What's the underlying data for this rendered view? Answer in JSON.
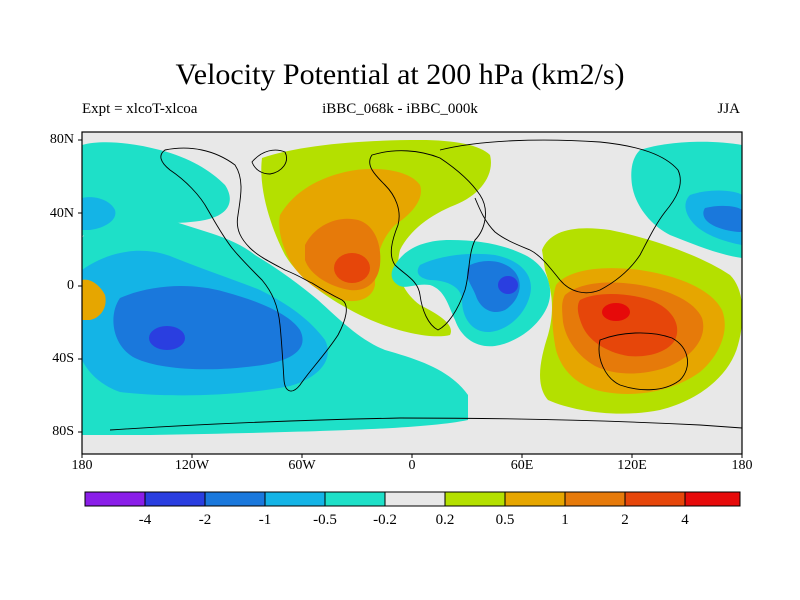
{
  "header": {
    "title": "Velocity Potential at 200 hPa (km2/s)",
    "left": "Expt = xlcoT-xlcoa",
    "center": "iBBC_068k - iBBC_000k",
    "right": "JJA"
  },
  "axes": {
    "lat_ticks": [
      "80N",
      "40N",
      "0",
      "40S",
      "80S"
    ],
    "lon_ticks": [
      "180",
      "120W",
      "60W",
      "0",
      "60E",
      "120E",
      "180"
    ]
  },
  "colorbar": {
    "labels": [
      "-4",
      "-2",
      "-1",
      "-0.5",
      "-0.2",
      "0.2",
      "0.5",
      "1",
      "2",
      "4"
    ],
    "colors": [
      "#8a1ee8",
      "#2a3ee0",
      "#1a78dc",
      "#14b4e6",
      "#1ee0c8",
      "#e8e8e8",
      "#b4e000",
      "#e6a600",
      "#e67a0a",
      "#e6460a",
      "#e60a0a"
    ]
  },
  "chart_data": {
    "type": "filled-contour-map",
    "title": "Velocity Potential at 200 hPa (km2/s)",
    "units": "km2/s",
    "season": "JJA",
    "levels": [
      -4,
      -2,
      -1,
      -0.5,
      -0.2,
      0.2,
      0.5,
      1,
      2,
      4
    ],
    "xlim": [
      -180,
      180
    ],
    "ylim": [
      -90,
      90
    ]
  }
}
